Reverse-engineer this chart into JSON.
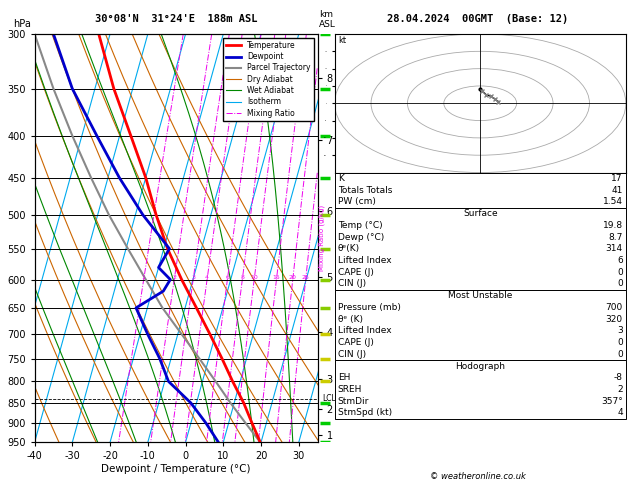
{
  "title_left": "30°08'N  31°24'E  188m ASL",
  "title_right": "28.04.2024  00GMT  (Base: 12)",
  "xlabel": "Dewpoint / Temperature (°C)",
  "ylabel_left": "hPa",
  "pressure_levels": [
    300,
    350,
    400,
    450,
    500,
    550,
    600,
    650,
    700,
    750,
    800,
    850,
    900,
    950
  ],
  "temp_xlim": [
    -40,
    35
  ],
  "skew_factor": 30,
  "temp_profile_p": [
    950,
    900,
    850,
    800,
    750,
    700,
    650,
    600,
    550,
    500,
    450,
    400,
    350,
    300
  ],
  "temp_profile_t": [
    19.8,
    16.2,
    12.5,
    8.0,
    3.5,
    -1.5,
    -7.0,
    -13.0,
    -19.0,
    -24.5,
    -30.0,
    -37.0,
    -45.0,
    -53.0
  ],
  "dewp_profile_p": [
    950,
    900,
    850,
    800,
    750,
    700,
    650,
    620,
    600,
    580,
    560,
    550,
    500,
    450,
    400,
    350,
    300
  ],
  "dewp_profile_t": [
    8.7,
    4.0,
    -1.5,
    -9.0,
    -13.0,
    -18.0,
    -23.0,
    -17.0,
    -16.0,
    -20.0,
    -19.0,
    -18.5,
    -28.0,
    -37.0,
    -46.0,
    -56.0,
    -65.0
  ],
  "parcel_profile_p": [
    950,
    900,
    850,
    800,
    750,
    700,
    650,
    600,
    550,
    500,
    450,
    400,
    350,
    300
  ],
  "parcel_profile_t": [
    19.8,
    14.5,
    9.0,
    3.5,
    -2.5,
    -9.0,
    -16.0,
    -22.5,
    -29.5,
    -37.0,
    -44.5,
    -52.5,
    -61.0,
    -70.0
  ],
  "mixing_ratio_lines": [
    1,
    2,
    3,
    4,
    6,
    8,
    10,
    15,
    20,
    25
  ],
  "legend_items": [
    {
      "label": "Temperature",
      "color": "#ff0000",
      "lw": 2,
      "ls": "-"
    },
    {
      "label": "Dewpoint",
      "color": "#0000cc",
      "lw": 2,
      "ls": "-"
    },
    {
      "label": "Parcel Trajectory",
      "color": "#888888",
      "lw": 1.5,
      "ls": "-"
    },
    {
      "label": "Dry Adiabat",
      "color": "#cc6600",
      "lw": 0.8,
      "ls": "-"
    },
    {
      "label": "Wet Adiabat",
      "color": "#008800",
      "lw": 0.8,
      "ls": "-"
    },
    {
      "label": "Isotherm",
      "color": "#00aaee",
      "lw": 0.8,
      "ls": "-"
    },
    {
      "label": "Mixing Ratio",
      "color": "#ee00ee",
      "lw": 0.7,
      "ls": "-."
    }
  ],
  "info_K": 17,
  "info_TT": 41,
  "info_PW": 1.54,
  "surf_temp": 19.8,
  "surf_dewp": 8.7,
  "surf_theta_e": 314,
  "surf_li": 6,
  "surf_cape": 0,
  "surf_cin": 0,
  "mu_press": 700,
  "mu_theta_e": 320,
  "mu_li": 3,
  "mu_cape": 0,
  "mu_cin": 0,
  "hodo_eh": -8,
  "hodo_sreh": 2,
  "hodo_stmdir": "357°",
  "hodo_stmspd": 4,
  "copyright": "© weatheronline.co.uk",
  "lcl_pressure": 840,
  "wind_levels_p": [
    950,
    900,
    850,
    800,
    750,
    700,
    650,
    600,
    550,
    500,
    450,
    400,
    350,
    300
  ],
  "wind_colors": [
    "#00cc00",
    "#00cc00",
    "#00cc00",
    "#cccc00",
    "#cccc00",
    "#cccc00",
    "#88cc00",
    "#88cc00",
    "#88cc00",
    "#88cc00",
    "#00cc00",
    "#00cc00",
    "#00cc00",
    "#00cc00"
  ]
}
